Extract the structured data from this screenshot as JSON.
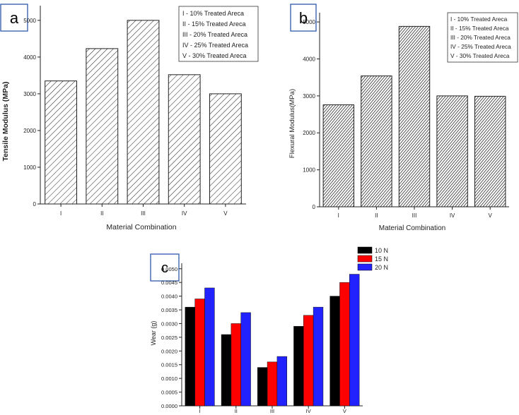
{
  "chart_data": [
    {
      "panel_label": "a",
      "type": "bar",
      "categories": [
        "I",
        "II",
        "III",
        "IV",
        "V"
      ],
      "values": [
        3350,
        4230,
        5000,
        3520,
        3000
      ],
      "xlabel": "Material Combination",
      "ylabel": "Tensile Modulus (MPa)",
      "ylim": [
        0,
        5400
      ],
      "yticks": [
        0,
        1000,
        2000,
        3000,
        4000,
        5000
      ],
      "legend": [
        "I -  10% Treated Areca",
        "II - 15% Treated Areca",
        "III - 20% Treated Areca",
        "IV - 25% Treated Areca",
        "V - 30% Treated Areca"
      ],
      "legend_position": "top-right",
      "fill": "diagonal hatch",
      "grid": false
    },
    {
      "panel_label": "b",
      "type": "bar",
      "categories": [
        "I",
        "II",
        "III",
        "IV",
        "V"
      ],
      "values": [
        2760,
        3540,
        4880,
        3000,
        2990
      ],
      "xlabel": "Material Combination",
      "ylabel": "Flexural Modulus(MPa)",
      "ylim": [
        0,
        5250
      ],
      "yticks": [
        0,
        1000,
        2000,
        3000,
        4000,
        5000
      ],
      "legend": [
        "I -  10% Treated Areca",
        "II - 15% Treated Areca",
        "III - 20% Treated Areca",
        "IV - 25% Treated Areca",
        "V - 30% Treated Areca"
      ],
      "legend_position": "top-right",
      "fill": "dense diagonal hatch",
      "grid": false
    },
    {
      "panel_label": "c",
      "type": "bar",
      "categories": [
        "I",
        "II",
        "III",
        "IV",
        "V"
      ],
      "series": [
        {
          "name": "10 N",
          "color": "#000000",
          "values": [
            0.0036,
            0.0026,
            0.0014,
            0.0029,
            0.004
          ]
        },
        {
          "name": "15 N",
          "color": "#ff0000",
          "values": [
            0.0039,
            0.003,
            0.0016,
            0.0033,
            0.0045
          ]
        },
        {
          "name": "20 N",
          "color": "#2222ff",
          "values": [
            0.0043,
            0.0034,
            0.0018,
            0.0036,
            0.0048
          ]
        }
      ],
      "xlabel": "",
      "ylabel": "Wear (g)",
      "ylim": [
        0,
        0.0052
      ],
      "yticks": [
        "0.0000",
        "0.0005",
        "0.0010",
        "0.0015",
        "0.0020",
        "0.0025",
        "0.0030",
        "0.0035",
        "0.0040",
        "0.0045",
        "0.0050"
      ],
      "legend_position": "top-right",
      "grid": false
    }
  ]
}
